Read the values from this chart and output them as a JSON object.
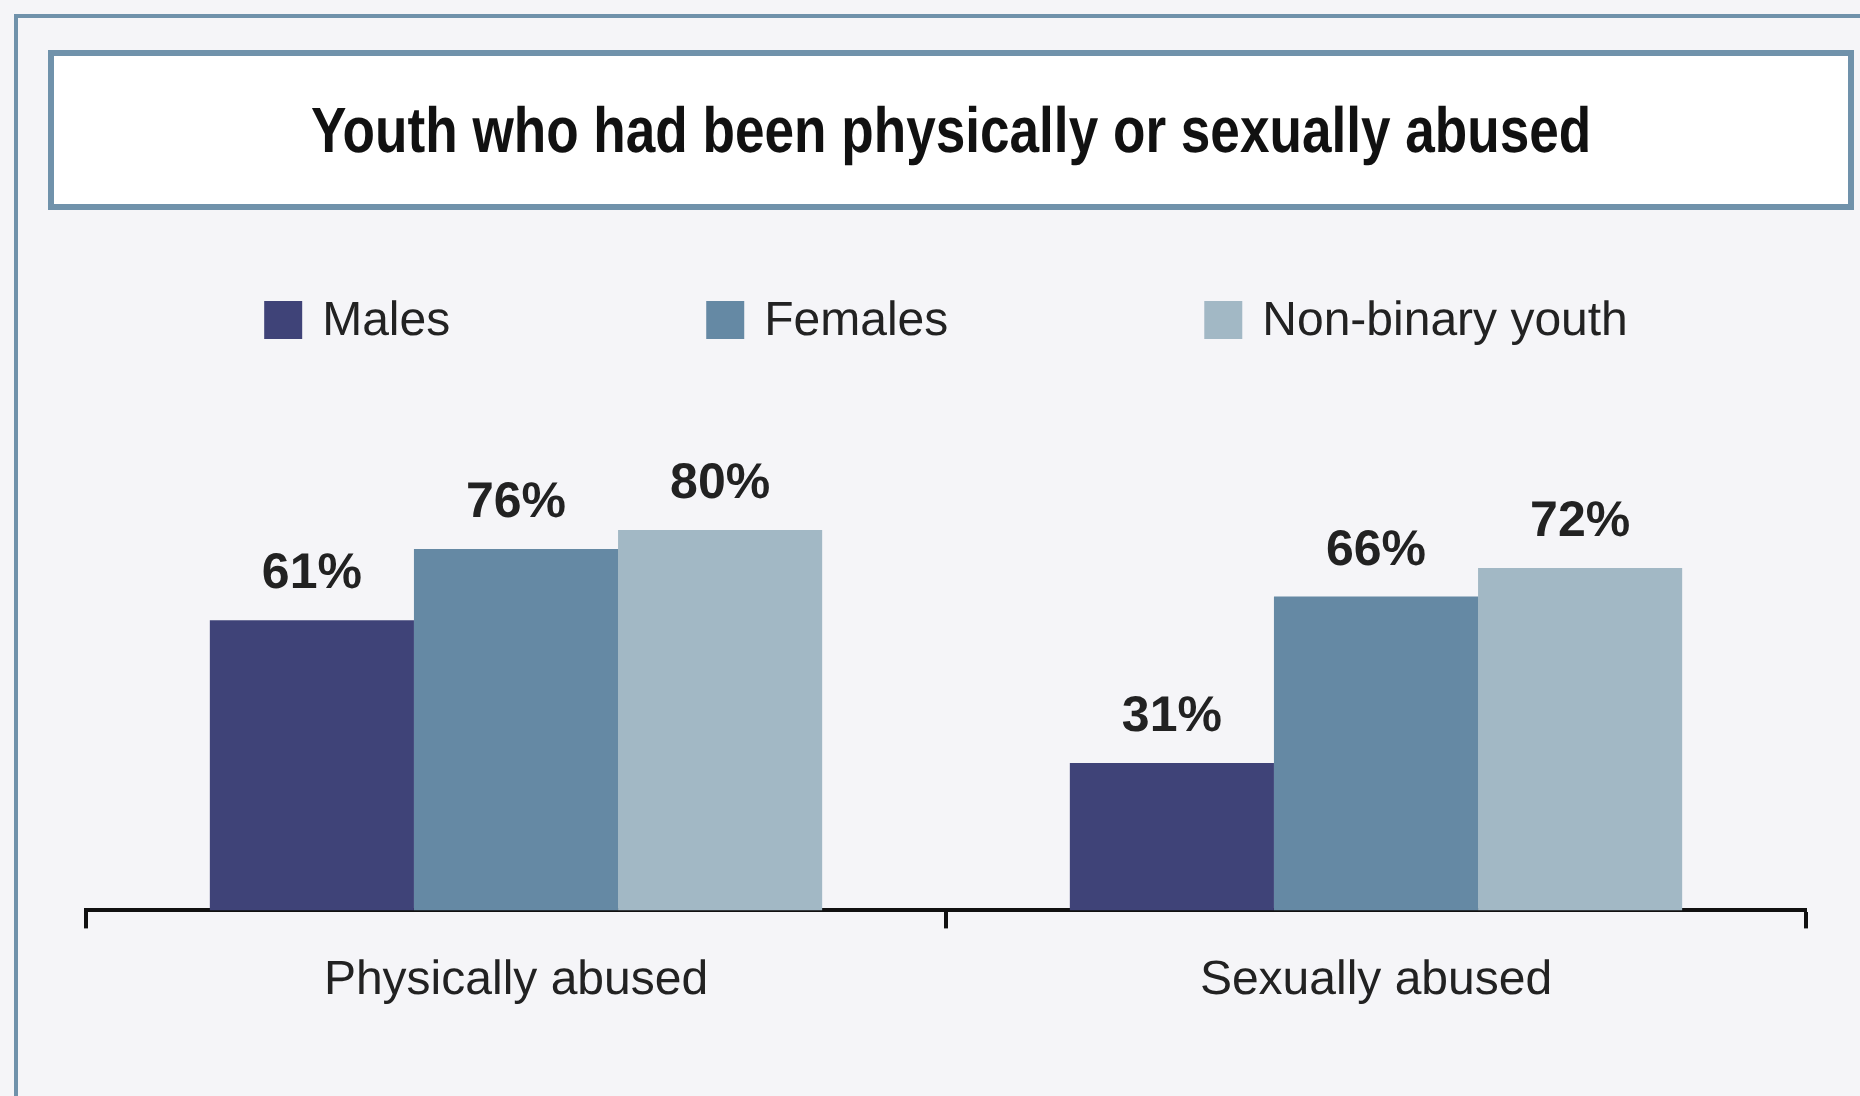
{
  "chart_data": {
    "type": "bar",
    "title": "Youth who had been physically or sexually abused",
    "categories": [
      "Physically abused",
      "Sexually abused"
    ],
    "series": [
      {
        "name": "Males",
        "color": "#3f4378",
        "values": [
          61,
          31
        ],
        "value_labels": [
          "61%",
          "31%"
        ]
      },
      {
        "name": "Females",
        "color": "#6589a4",
        "values": [
          76,
          66
        ],
        "value_labels": [
          "76%",
          "66%"
        ]
      },
      {
        "name": "Non-binary youth",
        "color": "#a2b8c5",
        "values": [
          80,
          72
        ],
        "value_labels": [
          "80%",
          "72%"
        ]
      }
    ],
    "legend": "top",
    "tick_labels": "x"
  }
}
